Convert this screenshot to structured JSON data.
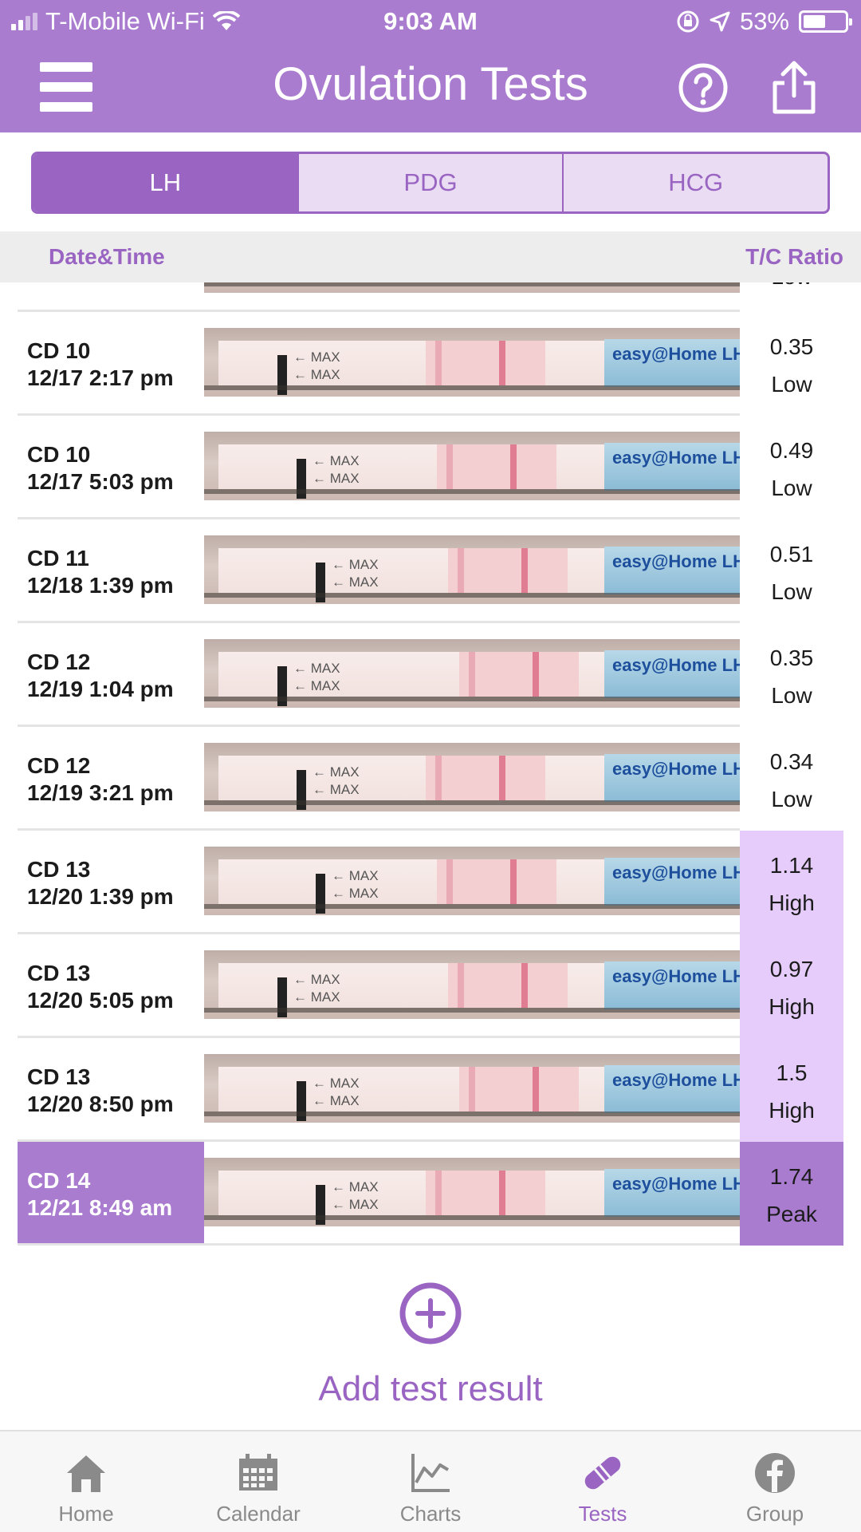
{
  "status_bar": {
    "carrier": "T-Mobile Wi-Fi",
    "time": "9:03 AM",
    "battery": "53%",
    "battery_level": 0.53
  },
  "header": {
    "title": "Ovulation Tests",
    "menu_icon": "hamburger-menu-icon",
    "help_icon": "help-circle-icon",
    "share_icon": "share-icon"
  },
  "test_type_tabs": [
    {
      "label": "LH",
      "selected": true
    },
    {
      "label": "PDG",
      "selected": false
    },
    {
      "label": "HCG",
      "selected": false
    }
  ],
  "columns": {
    "date_time": "Date&Time",
    "ratio": "T/C Ratio"
  },
  "partial_top_row": {
    "value_label": "Low"
  },
  "results": [
    {
      "cycle_day": "CD 10",
      "datetime": "12/17 2:17 pm",
      "ratio": "0.35",
      "level": "Low"
    },
    {
      "cycle_day": "CD 10",
      "datetime": "12/17 5:03 pm",
      "ratio": "0.49",
      "level": "Low"
    },
    {
      "cycle_day": "CD 11",
      "datetime": "12/18 1:39 pm",
      "ratio": "0.51",
      "level": "Low"
    },
    {
      "cycle_day": "CD 12",
      "datetime": "12/19 1:04 pm",
      "ratio": "0.35",
      "level": "Low"
    },
    {
      "cycle_day": "CD 12",
      "datetime": "12/19 3:21 pm",
      "ratio": "0.34",
      "level": "Low"
    },
    {
      "cycle_day": "CD 13",
      "datetime": "12/20 1:39 pm",
      "ratio": "1.14",
      "level": "High"
    },
    {
      "cycle_day": "CD 13",
      "datetime": "12/20 5:05 pm",
      "ratio": "0.97",
      "level": "High"
    },
    {
      "cycle_day": "CD 13",
      "datetime": "12/20 8:50 pm",
      "ratio": "1.5",
      "level": "High"
    },
    {
      "cycle_day": "CD 14",
      "datetime": "12/21 8:49 am",
      "ratio": "1.74",
      "level": "Peak"
    }
  ],
  "strip_text": {
    "max": "MAX",
    "brand": "easy@Home LH"
  },
  "add_button": {
    "label": "Add test result",
    "icon": "plus-circle-icon"
  },
  "tab_bar": [
    {
      "label": "Home",
      "icon": "home-icon",
      "active": false
    },
    {
      "label": "Calendar",
      "icon": "calendar-icon",
      "active": false
    },
    {
      "label": "Charts",
      "icon": "chart-icon",
      "active": false
    },
    {
      "label": "Tests",
      "icon": "test-strip-icon",
      "active": true
    },
    {
      "label": "Group",
      "icon": "facebook-icon",
      "active": false
    }
  ],
  "colors": {
    "brand_purple": "#a97ccf",
    "accent_purple": "#9a65c2",
    "high_highlight": "#e6ccfa"
  }
}
